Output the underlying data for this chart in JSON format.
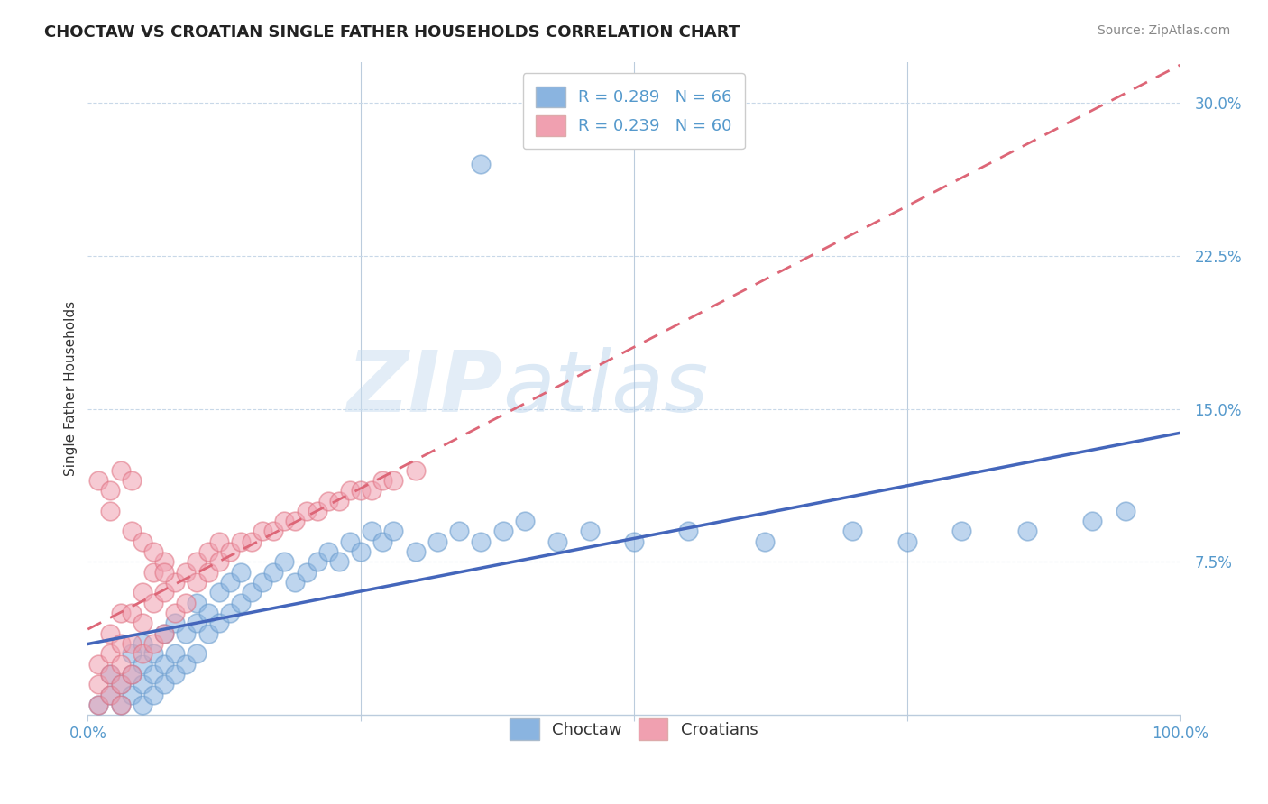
{
  "title": "CHOCTAW VS CROATIAN SINGLE FATHER HOUSEHOLDS CORRELATION CHART",
  "source": "Source: ZipAtlas.com",
  "ylabel": "Single Father Households",
  "ylim": [
    0,
    0.32
  ],
  "xlim": [
    0,
    1.0
  ],
  "watermark_zip": "ZIP",
  "watermark_atlas": "atlas",
  "choctaw_color": "#8ab4e0",
  "choctaw_edge": "#6699cc",
  "croatian_color": "#f0a0b0",
  "croatian_edge": "#e07080",
  "choctaw_line_color": "#4466bb",
  "croatian_line_color": "#dd6677",
  "grid_color": "#c8d8e8",
  "background_color": "#ffffff",
  "choctaw_x": [
    0.01,
    0.02,
    0.02,
    0.03,
    0.03,
    0.04,
    0.04,
    0.04,
    0.05,
    0.05,
    0.05,
    0.05,
    0.06,
    0.06,
    0.06,
    0.07,
    0.07,
    0.07,
    0.08,
    0.08,
    0.08,
    0.09,
    0.09,
    0.1,
    0.1,
    0.1,
    0.11,
    0.11,
    0.12,
    0.12,
    0.13,
    0.13,
    0.14,
    0.14,
    0.15,
    0.16,
    0.17,
    0.18,
    0.19,
    0.2,
    0.21,
    0.22,
    0.23,
    0.24,
    0.25,
    0.26,
    0.27,
    0.28,
    0.3,
    0.32,
    0.34,
    0.36,
    0.38,
    0.4,
    0.43,
    0.46,
    0.5,
    0.55,
    0.62,
    0.7,
    0.75,
    0.8,
    0.86,
    0.92,
    0.95,
    0.36
  ],
  "choctaw_y": [
    0.005,
    0.01,
    0.02,
    0.005,
    0.015,
    0.01,
    0.02,
    0.03,
    0.005,
    0.015,
    0.025,
    0.035,
    0.01,
    0.02,
    0.03,
    0.015,
    0.025,
    0.04,
    0.02,
    0.03,
    0.045,
    0.025,
    0.04,
    0.03,
    0.045,
    0.055,
    0.04,
    0.05,
    0.045,
    0.06,
    0.05,
    0.065,
    0.055,
    0.07,
    0.06,
    0.065,
    0.07,
    0.075,
    0.065,
    0.07,
    0.075,
    0.08,
    0.075,
    0.085,
    0.08,
    0.09,
    0.085,
    0.09,
    0.08,
    0.085,
    0.09,
    0.085,
    0.09,
    0.095,
    0.085,
    0.09,
    0.085,
    0.09,
    0.085,
    0.09,
    0.085,
    0.09,
    0.09,
    0.095,
    0.1,
    0.27
  ],
  "croatian_x": [
    0.01,
    0.01,
    0.01,
    0.02,
    0.02,
    0.02,
    0.02,
    0.03,
    0.03,
    0.03,
    0.03,
    0.04,
    0.04,
    0.04,
    0.05,
    0.05,
    0.05,
    0.06,
    0.06,
    0.06,
    0.07,
    0.07,
    0.07,
    0.08,
    0.08,
    0.09,
    0.09,
    0.1,
    0.1,
    0.11,
    0.11,
    0.12,
    0.12,
    0.13,
    0.14,
    0.15,
    0.16,
    0.17,
    0.18,
    0.19,
    0.2,
    0.21,
    0.22,
    0.23,
    0.24,
    0.25,
    0.26,
    0.27,
    0.28,
    0.3,
    0.01,
    0.02,
    0.03,
    0.04,
    0.05,
    0.06,
    0.07,
    0.02,
    0.03,
    0.04
  ],
  "croatian_y": [
    0.005,
    0.015,
    0.025,
    0.01,
    0.02,
    0.03,
    0.04,
    0.015,
    0.025,
    0.035,
    0.05,
    0.02,
    0.035,
    0.05,
    0.03,
    0.045,
    0.06,
    0.035,
    0.055,
    0.07,
    0.04,
    0.06,
    0.075,
    0.05,
    0.065,
    0.055,
    0.07,
    0.065,
    0.075,
    0.07,
    0.08,
    0.075,
    0.085,
    0.08,
    0.085,
    0.085,
    0.09,
    0.09,
    0.095,
    0.095,
    0.1,
    0.1,
    0.105,
    0.105,
    0.11,
    0.11,
    0.11,
    0.115,
    0.115,
    0.12,
    0.115,
    0.11,
    0.12,
    0.09,
    0.085,
    0.08,
    0.07,
    0.1,
    0.005,
    0.115
  ]
}
